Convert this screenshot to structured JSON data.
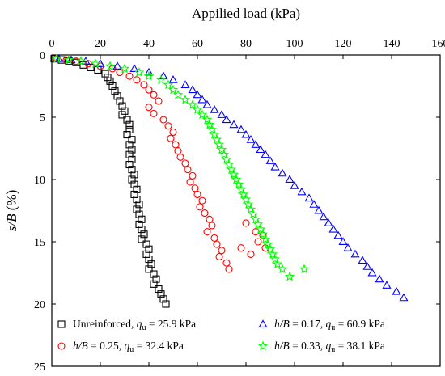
{
  "chart_data": {
    "type": "scatter",
    "title": "",
    "xlabel": "Appilied load (kPa)",
    "xlabel_position": "top",
    "ylabel": "s/B (%)",
    "xlim": [
      0,
      160
    ],
    "ylim": [
      0,
      25
    ],
    "y_inverted": true,
    "xticks": [
      0,
      20,
      40,
      60,
      80,
      100,
      120,
      140,
      160
    ],
    "yticks": [
      0,
      5,
      10,
      15,
      20,
      25
    ],
    "grid": false,
    "legend_position": "bottom",
    "series": [
      {
        "name": "Unreinforced",
        "legend_value": "25.9 kPa",
        "marker": "square",
        "color": "#000000",
        "points": [
          [
            1,
            0.3
          ],
          [
            4,
            0.4
          ],
          [
            7,
            0.5
          ],
          [
            10,
            0.6
          ],
          [
            13,
            0.8
          ],
          [
            16,
            1
          ],
          [
            19,
            1.2
          ],
          [
            22,
            1.5
          ],
          [
            23,
            1.8
          ],
          [
            24,
            2.1
          ],
          [
            25,
            2.5
          ],
          [
            26,
            2.9
          ],
          [
            27,
            3.3
          ],
          [
            28,
            3.7
          ],
          [
            29,
            4.1
          ],
          [
            30,
            4.5
          ],
          [
            29,
            4.8
          ],
          [
            31,
            5.2
          ],
          [
            32,
            5.6
          ],
          [
            32,
            6
          ],
          [
            31,
            6.4
          ],
          [
            33,
            6.8
          ],
          [
            32,
            7.2
          ],
          [
            33,
            7.6
          ],
          [
            32,
            8
          ],
          [
            33,
            8.4
          ],
          [
            32,
            8.8
          ],
          [
            33,
            9.2
          ],
          [
            34,
            9.6
          ],
          [
            33,
            10
          ],
          [
            34,
            10.4
          ],
          [
            35,
            10.8
          ],
          [
            34,
            11.2
          ],
          [
            35,
            11.6
          ],
          [
            36,
            12
          ],
          [
            35,
            12.4
          ],
          [
            36,
            12.8
          ],
          [
            37,
            13.2
          ],
          [
            36,
            13.6
          ],
          [
            37,
            14
          ],
          [
            38,
            14.4
          ],
          [
            37,
            14.8
          ],
          [
            39,
            15.2
          ],
          [
            40,
            15.6
          ],
          [
            39,
            16
          ],
          [
            40,
            16.4
          ],
          [
            41,
            16.8
          ],
          [
            40,
            17.2
          ],
          [
            42,
            17.6
          ],
          [
            43,
            18
          ],
          [
            42,
            18.4
          ],
          [
            44,
            18.8
          ],
          [
            45,
            19.2
          ],
          [
            46,
            19.6
          ],
          [
            47,
            20
          ]
        ]
      },
      {
        "name": "h/B = 0.25",
        "legend_value": "32.4 kPa",
        "marker": "circle",
        "color": "#ff0000",
        "points": [
          [
            2,
            0.3
          ],
          [
            6,
            0.4
          ],
          [
            10,
            0.5
          ],
          [
            15,
            0.7
          ],
          [
            20,
            0.9
          ],
          [
            25,
            1.1
          ],
          [
            28,
            1.4
          ],
          [
            32,
            1.7
          ],
          [
            35,
            2
          ],
          [
            38,
            2.4
          ],
          [
            40,
            2.8
          ],
          [
            42,
            3.2
          ],
          [
            44,
            3.7
          ],
          [
            40,
            4.2
          ],
          [
            42,
            4.7
          ],
          [
            46,
            5.2
          ],
          [
            48,
            5.7
          ],
          [
            50,
            6.2
          ],
          [
            49,
            6.7
          ],
          [
            51,
            7.2
          ],
          [
            52,
            7.7
          ],
          [
            53,
            8.2
          ],
          [
            55,
            8.7
          ],
          [
            56,
            9.2
          ],
          [
            58,
            9.7
          ],
          [
            57,
            10.2
          ],
          [
            59,
            10.7
          ],
          [
            60,
            11.2
          ],
          [
            62,
            11.7
          ],
          [
            61,
            12.2
          ],
          [
            63,
            12.7
          ],
          [
            65,
            13.2
          ],
          [
            66,
            13.7
          ],
          [
            64,
            14.2
          ],
          [
            67,
            14.7
          ],
          [
            68,
            15.2
          ],
          [
            70,
            15.7
          ],
          [
            69,
            16.2
          ],
          [
            72,
            16.7
          ],
          [
            73,
            17.2
          ],
          [
            80,
            13.5
          ],
          [
            84,
            14.2
          ],
          [
            85,
            15
          ],
          [
            78,
            15.5
          ],
          [
            82,
            16
          ],
          [
            87,
            14.5
          ],
          [
            88,
            15.5
          ]
        ]
      },
      {
        "name": "h/B = 0.17",
        "legend_value": "60.9 kPa",
        "marker": "triangle",
        "color": "#0000ff",
        "points": [
          [
            3,
            0.3
          ],
          [
            8,
            0.4
          ],
          [
            14,
            0.5
          ],
          [
            20,
            0.7
          ],
          [
            27,
            0.9
          ],
          [
            34,
            1.1
          ],
          [
            40,
            1.4
          ],
          [
            46,
            1.7
          ],
          [
            50,
            2
          ],
          [
            55,
            2.4
          ],
          [
            58,
            2.8
          ],
          [
            60,
            3.2
          ],
          [
            62,
            3.6
          ],
          [
            64,
            4
          ],
          [
            67,
            4.4
          ],
          [
            70,
            4.8
          ],
          [
            72,
            5.2
          ],
          [
            75,
            5.6
          ],
          [
            78,
            6
          ],
          [
            80,
            6.4
          ],
          [
            82,
            6.8
          ],
          [
            84,
            7.2
          ],
          [
            86,
            7.6
          ],
          [
            88,
            8
          ],
          [
            90,
            8.5
          ],
          [
            92,
            9
          ],
          [
            95,
            9.5
          ],
          [
            98,
            10
          ],
          [
            100,
            10.5
          ],
          [
            103,
            11
          ],
          [
            106,
            11.5
          ],
          [
            108,
            12
          ],
          [
            110,
            12.5
          ],
          [
            112,
            13
          ],
          [
            114,
            13.5
          ],
          [
            116,
            14
          ],
          [
            118,
            14.5
          ],
          [
            120,
            15
          ],
          [
            122,
            15.5
          ],
          [
            125,
            16
          ],
          [
            128,
            16.5
          ],
          [
            130,
            17
          ],
          [
            132,
            17.5
          ],
          [
            135,
            18
          ],
          [
            138,
            18.5
          ],
          [
            142,
            19
          ],
          [
            145,
            19.5
          ]
        ]
      },
      {
        "name": "h/B = 0.33",
        "legend_value": "38.1 kPa",
        "marker": "star",
        "color": "#00ff00",
        "points": [
          [
            2,
            0.3
          ],
          [
            7,
            0.4
          ],
          [
            12,
            0.5
          ],
          [
            18,
            0.7
          ],
          [
            24,
            0.9
          ],
          [
            30,
            1.1
          ],
          [
            36,
            1.4
          ],
          [
            40,
            1.7
          ],
          [
            45,
            2
          ],
          [
            48,
            2.4
          ],
          [
            50,
            2.8
          ],
          [
            52,
            3.2
          ],
          [
            55,
            3.6
          ],
          [
            58,
            4
          ],
          [
            60,
            4.4
          ],
          [
            62,
            4.8
          ],
          [
            64,
            5.2
          ],
          [
            65,
            5.6
          ],
          [
            66,
            6
          ],
          [
            67,
            6.4
          ],
          [
            68,
            6.8
          ],
          [
            69,
            7.2
          ],
          [
            70,
            7.6
          ],
          [
            71,
            8
          ],
          [
            72,
            8.4
          ],
          [
            73,
            8.8
          ],
          [
            74,
            9.2
          ],
          [
            75,
            9.6
          ],
          [
            76,
            10
          ],
          [
            77,
            10.4
          ],
          [
            78,
            10.8
          ],
          [
            79,
            11.2
          ],
          [
            80,
            11.6
          ],
          [
            81,
            12
          ],
          [
            82,
            12.4
          ],
          [
            83,
            12.8
          ],
          [
            84,
            13.2
          ],
          [
            85,
            13.6
          ],
          [
            86,
            14
          ],
          [
            87,
            14.4
          ],
          [
            88,
            14.8
          ],
          [
            89,
            15.2
          ],
          [
            90,
            15.6
          ],
          [
            91,
            16
          ],
          [
            92,
            16.4
          ],
          [
            93,
            16.8
          ],
          [
            95,
            17.2
          ],
          [
            98,
            17.8
          ],
          [
            104,
            17.2
          ]
        ]
      }
    ]
  },
  "legend": {
    "entries": [
      {
        "italic": "",
        "rhs_prefix": "Unreinforced, ",
        "q": "q",
        "q_sub": "u",
        "value": " = 25.9 kPa"
      },
      {
        "italic": "h/B",
        "rhs_prefix": " = 0.17, ",
        "q": "q",
        "q_sub": "u",
        "value": " = 60.9 kPa"
      },
      {
        "italic": "h/B",
        "rhs_prefix": " = 0.25, ",
        "q": "q",
        "q_sub": "u",
        "value": " = 32.4 kPa"
      },
      {
        "italic": "h/B",
        "rhs_prefix": " = 0.33, ",
        "q": "q",
        "q_sub": "u",
        "value": " = 38.1 kPa"
      }
    ]
  }
}
